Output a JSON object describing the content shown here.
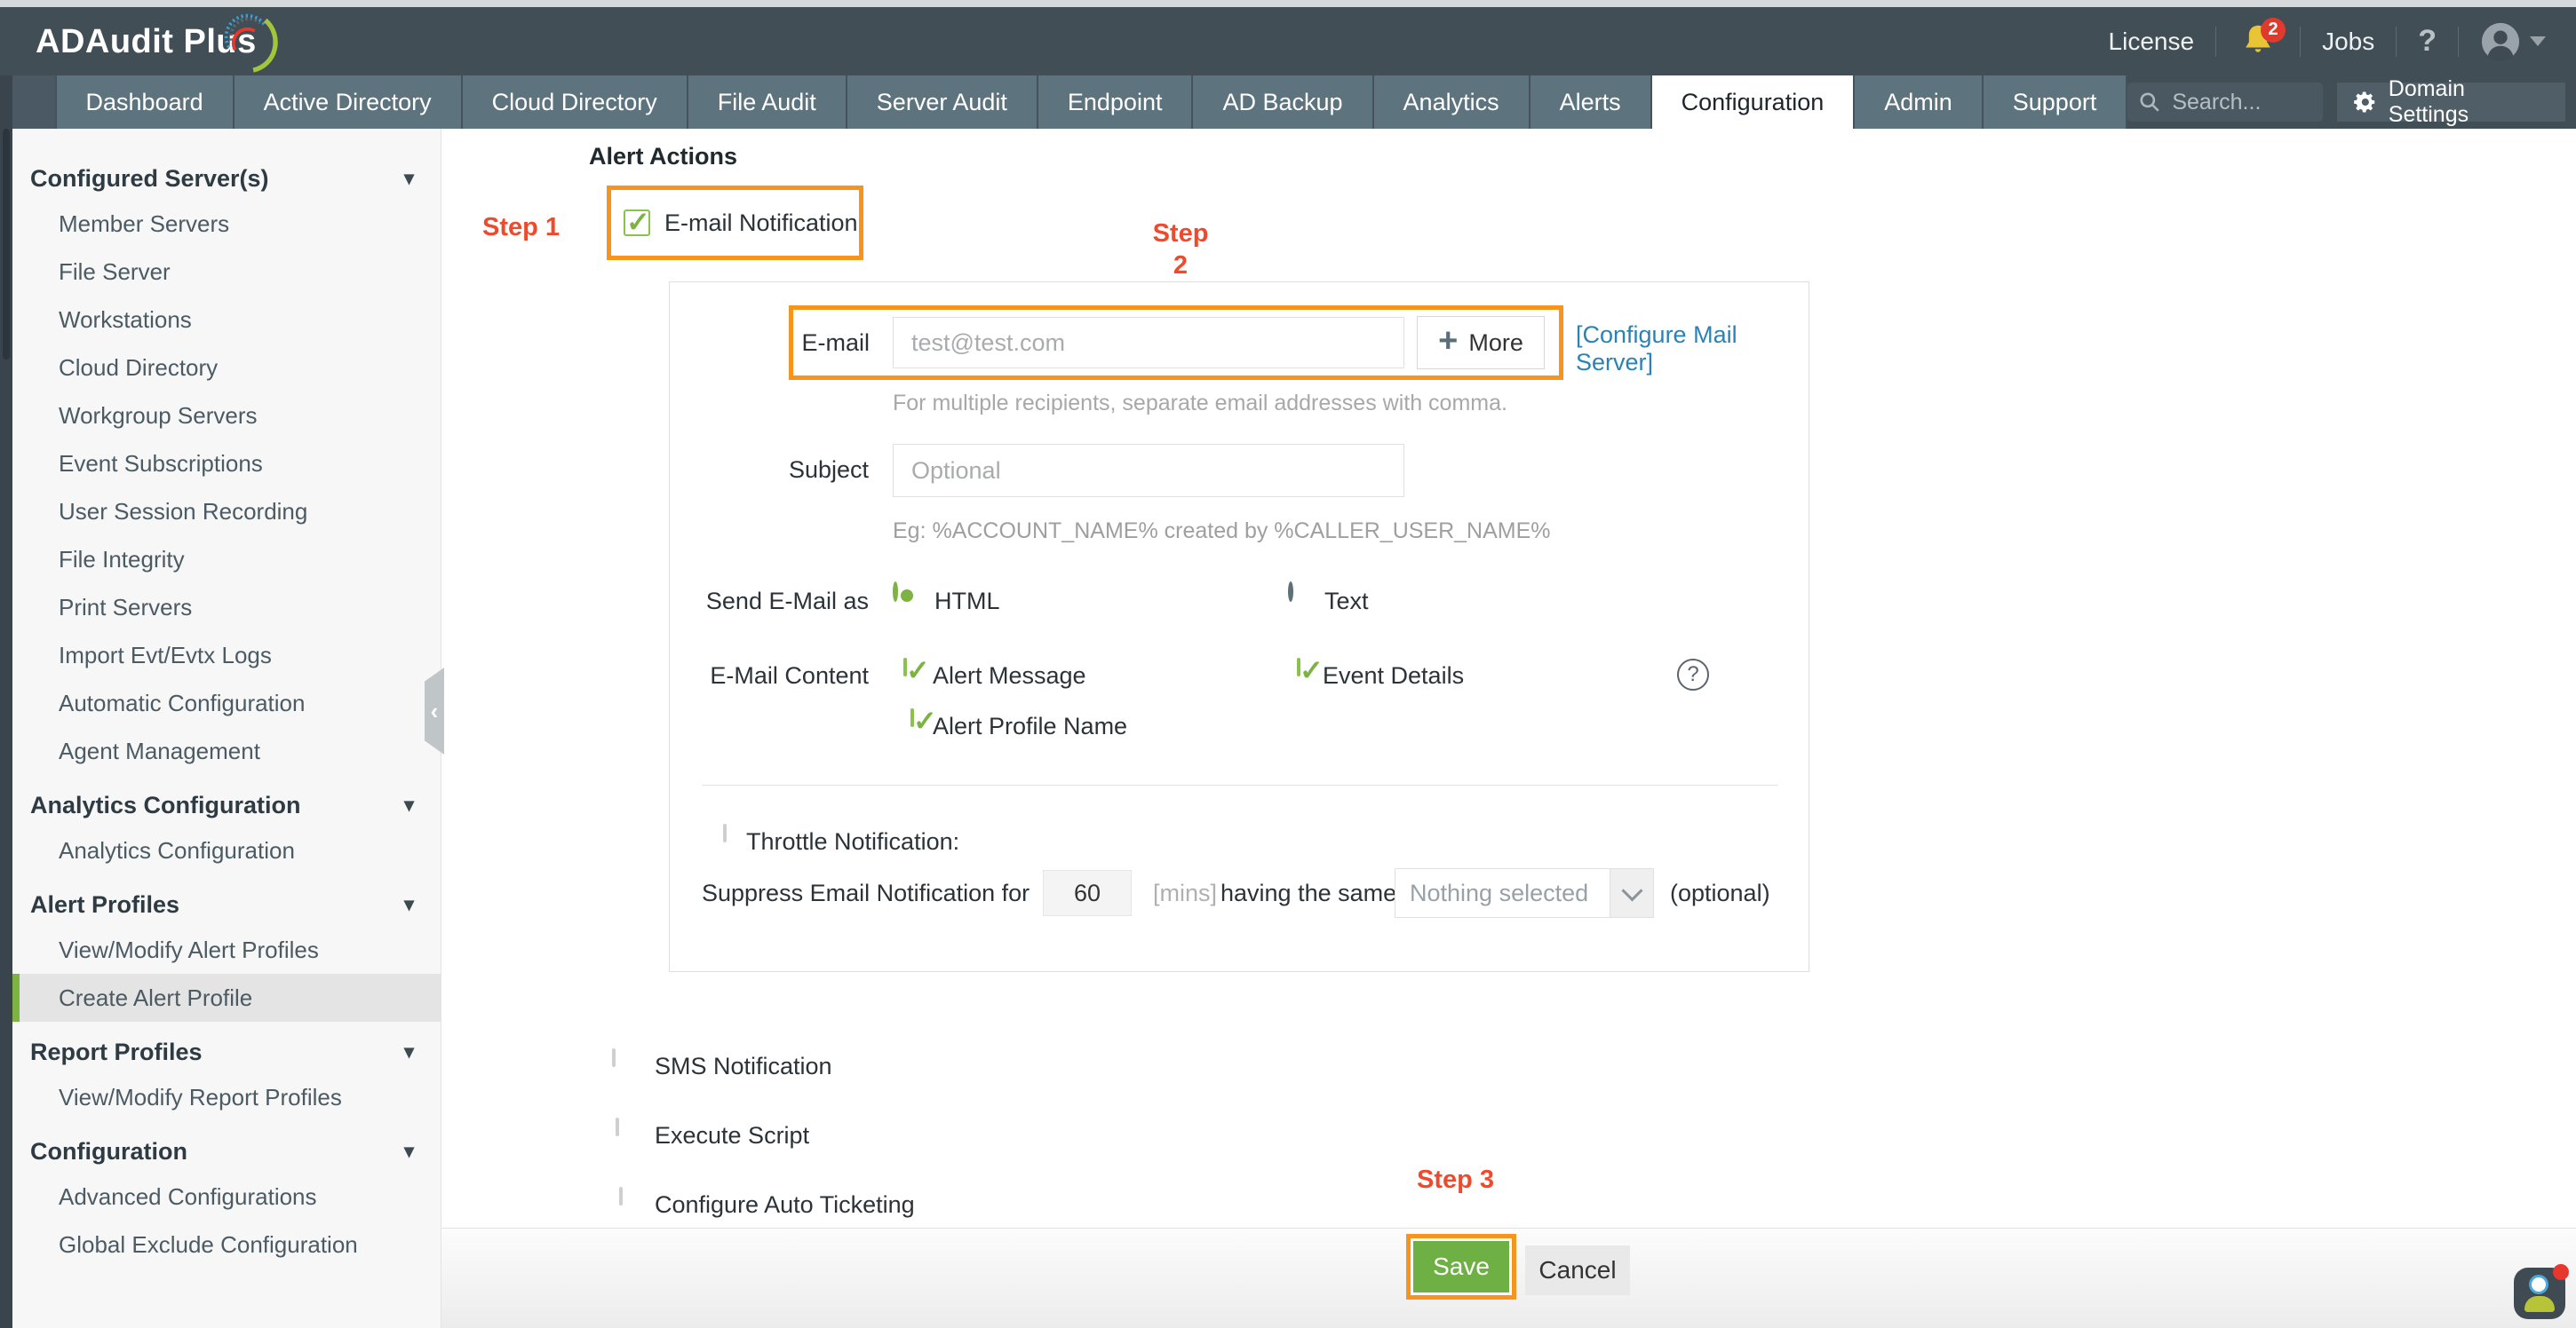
{
  "header": {
    "logo_text": "ADAudit Plus",
    "license_label": "License",
    "notification_count": "2",
    "jobs_label": "Jobs",
    "help_label": "?"
  },
  "nav": {
    "tabs": [
      {
        "label": "Dashboard",
        "active": false
      },
      {
        "label": "Active Directory",
        "active": false
      },
      {
        "label": "Cloud Directory",
        "active": false
      },
      {
        "label": "File Audit",
        "active": false
      },
      {
        "label": "Server Audit",
        "active": false
      },
      {
        "label": "Endpoint",
        "active": false
      },
      {
        "label": "AD Backup",
        "active": false
      },
      {
        "label": "Analytics",
        "active": false
      },
      {
        "label": "Alerts",
        "active": false
      },
      {
        "label": "Configuration",
        "active": true
      },
      {
        "label": "Admin",
        "active": false
      },
      {
        "label": "Support",
        "active": false
      }
    ],
    "search_placeholder": "Search...",
    "domain_settings_label": "Domain Settings"
  },
  "sidebar": {
    "selected_item": "Create Alert Profile",
    "sections": [
      {
        "label": "Configured Server(s)",
        "items": [
          "Member Servers",
          "File Server",
          "Workstations",
          "Cloud Directory",
          "Workgroup Servers",
          "Event Subscriptions",
          "User Session Recording",
          "File Integrity",
          "Print Servers",
          "Import Evt/Evtx Logs",
          "Automatic Configuration",
          "Agent Management"
        ]
      },
      {
        "label": "Analytics Configuration",
        "items": [
          "Analytics Configuration"
        ]
      },
      {
        "label": "Alert Profiles",
        "items": [
          "View/Modify Alert Profiles",
          "Create Alert Profile"
        ]
      },
      {
        "label": "Report Profiles",
        "items": [
          "View/Modify Report Profiles"
        ]
      },
      {
        "label": "Configuration",
        "items": [
          "Advanced Configurations",
          "Global Exclude Configuration"
        ]
      }
    ]
  },
  "main": {
    "section_title": "Alert Actions",
    "steps": {
      "step1": "Step 1",
      "step2_line1": "Step",
      "step2_line2": "2",
      "step3": "Step 3"
    },
    "email_notification_label": "E-mail Notification",
    "email_form": {
      "email_label": "E-mail",
      "email_placeholder": "test@test.com",
      "more_button": "More",
      "configure_mail_server_link": "[Configure Mail Server]",
      "email_helper": "For multiple recipients, separate email addresses with comma.",
      "subject_label": "Subject",
      "subject_placeholder": "Optional",
      "subject_helper": "Eg: %ACCOUNT_NAME% created by %CALLER_USER_NAME%",
      "send_email_as_label": "Send E-Mail as",
      "html_option": "HTML",
      "text_option": "Text",
      "email_content_label": "E-Mail Content",
      "content_options": [
        "Alert Message",
        "Event Details",
        "Alert Profile Name"
      ],
      "throttle_label": "Throttle Notification:",
      "suppress_prefix": "Suppress Email Notification for",
      "suppress_minutes": "60",
      "mins_label": "[mins]",
      "suppress_middle": "having the same",
      "dropdown_value": "Nothing selected",
      "optional_label": "(optional)"
    },
    "other_actions": [
      "SMS Notification",
      "Execute Script",
      "Configure Auto Ticketing"
    ],
    "buttons": {
      "save": "Save",
      "cancel": "Cancel"
    }
  },
  "icons": {
    "checkmark": "✓",
    "caret_down": "▾",
    "chevron_left": "‹",
    "plus": "+",
    "question_mark": "?"
  },
  "colors": {
    "accent_orange": "#f6941d",
    "step_red": "#ee4b2e",
    "check_green": "#7cb342",
    "save_green": "#6fb044",
    "link_blue": "#2a82b5",
    "header_dark": "#414e55",
    "tab_gray": "#5d747e"
  }
}
